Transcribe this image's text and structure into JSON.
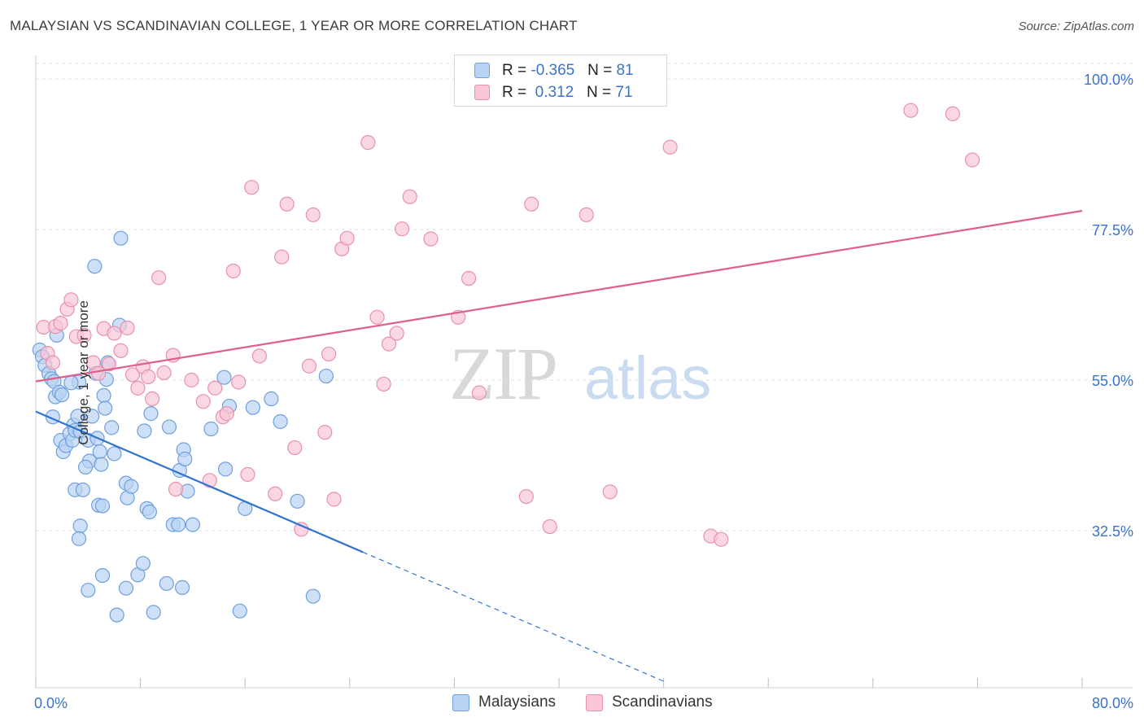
{
  "title": "MALAYSIAN VS SCANDINAVIAN COLLEGE, 1 YEAR OR MORE CORRELATION CHART",
  "source": "Source: ZipAtlas.com",
  "watermark": {
    "zip": "ZIP",
    "atlas": "atlas"
  },
  "colors": {
    "blue_fill": "#b8d3f4",
    "blue_stroke": "#6fa0dc",
    "blue_line": "#2f74d0",
    "pink_fill": "#f8c6d6",
    "pink_stroke": "#e891ad",
    "pink_line": "#e0608a",
    "tick_label": "#3a73c8",
    "grid": "#e2e2e2"
  },
  "legend": {
    "rows": [
      {
        "r_label": "R = ",
        "r_value": "-0.365",
        "n_label": "N = ",
        "n_value": "81"
      },
      {
        "r_label": "R = ",
        "r_value": " 0.312",
        "n_label": "N = ",
        "n_value": "71"
      }
    ]
  },
  "bottom_legend": {
    "series1": "Malaysians",
    "series2": "Scandinavians"
  },
  "chart_data": {
    "type": "scatter",
    "title": "MALAYSIAN VS SCANDINAVIAN COLLEGE, 1 YEAR OR MORE CORRELATION CHART",
    "xlabel": "",
    "ylabel": "College, 1 year or more",
    "xlim": [
      0,
      80
    ],
    "ylim": [
      10,
      105
    ],
    "x_tick_labels": [
      "0.0%",
      "80.0%"
    ],
    "y_ticks": [
      32.5,
      55.0,
      77.5,
      100.0
    ],
    "y_tick_labels": [
      "32.5%",
      "55.0%",
      "77.5%",
      "100.0%"
    ],
    "grid": "horizontal dashed",
    "legend_position": "top-center",
    "series": [
      {
        "name": "Malaysians",
        "color": "#b8d3f4",
        "R": -0.365,
        "N": 81,
        "trend": {
          "x0": 0,
          "y0": 50.3,
          "x1": 25,
          "y1": 29.3,
          "dashed_to_x": 48,
          "dashed_to_y": 10.0
        },
        "points": [
          [
            0.3,
            59.5
          ],
          [
            0.5,
            58.5
          ],
          [
            0.7,
            57.2
          ],
          [
            1.0,
            56.0
          ],
          [
            1.2,
            55.2
          ],
          [
            1.4,
            54.8
          ],
          [
            1.5,
            52.5
          ],
          [
            1.6,
            61.7
          ],
          [
            1.3,
            49.5
          ],
          [
            1.8,
            53.2
          ],
          [
            2.0,
            52.8
          ],
          [
            1.9,
            46.0
          ],
          [
            2.1,
            44.3
          ],
          [
            2.3,
            45.2
          ],
          [
            2.6,
            47.0
          ],
          [
            2.9,
            48.3
          ],
          [
            2.8,
            46.0
          ],
          [
            3.0,
            47.5
          ],
          [
            3.2,
            49.6
          ],
          [
            3.4,
            47.3
          ],
          [
            3.3,
            54.7
          ],
          [
            2.7,
            54.6
          ],
          [
            3.0,
            38.6
          ],
          [
            3.6,
            38.6
          ],
          [
            3.4,
            33.2
          ],
          [
            3.3,
            31.3
          ],
          [
            4.0,
            46.0
          ],
          [
            4.1,
            42.9
          ],
          [
            3.8,
            42.0
          ],
          [
            4.6,
            56.0
          ],
          [
            4.3,
            49.6
          ],
          [
            4.7,
            46.3
          ],
          [
            4.9,
            44.3
          ],
          [
            5.0,
            42.4
          ],
          [
            5.2,
            52.7
          ],
          [
            5.3,
            50.8
          ],
          [
            5.4,
            55.1
          ],
          [
            5.5,
            57.6
          ],
          [
            5.8,
            47.9
          ],
          [
            6.0,
            44.0
          ],
          [
            4.5,
            72.0
          ],
          [
            4.8,
            36.3
          ],
          [
            5.1,
            36.2
          ],
          [
            6.4,
            63.2
          ],
          [
            6.5,
            76.2
          ],
          [
            6.9,
            39.6
          ],
          [
            7.0,
            37.4
          ],
          [
            7.3,
            39.1
          ],
          [
            8.3,
            47.4
          ],
          [
            8.5,
            35.8
          ],
          [
            8.7,
            35.3
          ],
          [
            8.8,
            50.0
          ],
          [
            10.2,
            48.0
          ],
          [
            10.5,
            33.4
          ],
          [
            10.9,
            33.4
          ],
          [
            11.0,
            41.5
          ],
          [
            11.3,
            44.6
          ],
          [
            11.4,
            43.2
          ],
          [
            11.6,
            38.4
          ],
          [
            12.0,
            33.4
          ],
          [
            7.8,
            25.9
          ],
          [
            6.9,
            23.9
          ],
          [
            5.1,
            25.8
          ],
          [
            4.0,
            23.6
          ],
          [
            11.2,
            24.0
          ],
          [
            10.0,
            24.6
          ],
          [
            8.2,
            27.6
          ],
          [
            14.5,
            41.7
          ],
          [
            16.0,
            35.8
          ],
          [
            14.4,
            55.4
          ],
          [
            14.8,
            51.1
          ],
          [
            16.6,
            50.9
          ],
          [
            18.0,
            52.2
          ],
          [
            18.7,
            48.8
          ],
          [
            20.0,
            36.9
          ],
          [
            21.2,
            22.7
          ],
          [
            22.2,
            55.6
          ],
          [
            9.0,
            20.3
          ],
          [
            15.6,
            20.5
          ],
          [
            6.2,
            19.9
          ],
          [
            13.4,
            47.7
          ]
        ]
      },
      {
        "name": "Scandinavians",
        "color": "#f8c6d6",
        "R": 0.312,
        "N": 71,
        "trend": {
          "x0": 0,
          "y0": 54.8,
          "x1": 80,
          "y1": 80.3
        },
        "points": [
          [
            0.6,
            62.9
          ],
          [
            0.9,
            59.0
          ],
          [
            1.3,
            57.6
          ],
          [
            1.5,
            63.0
          ],
          [
            1.9,
            63.5
          ],
          [
            2.4,
            65.6
          ],
          [
            2.7,
            67.0
          ],
          [
            3.1,
            61.5
          ],
          [
            3.7,
            61.7
          ],
          [
            4.4,
            57.6
          ],
          [
            4.8,
            56.0
          ],
          [
            5.2,
            62.7
          ],
          [
            5.6,
            57.4
          ],
          [
            6.0,
            62.0
          ],
          [
            6.5,
            59.4
          ],
          [
            7.0,
            62.8
          ],
          [
            7.4,
            55.8
          ],
          [
            7.8,
            53.8
          ],
          [
            8.2,
            57.0
          ],
          [
            8.6,
            55.5
          ],
          [
            8.9,
            52.2
          ],
          [
            9.4,
            70.3
          ],
          [
            9.8,
            56.1
          ],
          [
            10.5,
            58.7
          ],
          [
            10.7,
            38.7
          ],
          [
            11.9,
            55.0
          ],
          [
            12.8,
            51.8
          ],
          [
            13.3,
            40.0
          ],
          [
            13.7,
            53.8
          ],
          [
            14.3,
            49.5
          ],
          [
            14.6,
            50.0
          ],
          [
            15.1,
            71.3
          ],
          [
            15.5,
            54.7
          ],
          [
            16.2,
            40.9
          ],
          [
            16.5,
            83.8
          ],
          [
            17.1,
            58.6
          ],
          [
            18.3,
            38.0
          ],
          [
            18.8,
            73.4
          ],
          [
            19.2,
            81.3
          ],
          [
            19.8,
            44.9
          ],
          [
            20.3,
            32.7
          ],
          [
            20.9,
            57.1
          ],
          [
            21.2,
            79.7
          ],
          [
            22.1,
            47.2
          ],
          [
            22.4,
            58.9
          ],
          [
            22.8,
            37.2
          ],
          [
            23.4,
            74.6
          ],
          [
            23.8,
            76.2
          ],
          [
            25.4,
            90.5
          ],
          [
            26.1,
            64.4
          ],
          [
            26.6,
            54.4
          ],
          [
            27.0,
            60.4
          ],
          [
            27.6,
            62.0
          ],
          [
            28.0,
            77.6
          ],
          [
            28.6,
            82.4
          ],
          [
            30.2,
            76.1
          ],
          [
            32.3,
            64.4
          ],
          [
            33.1,
            70.2
          ],
          [
            33.9,
            53.1
          ],
          [
            37.5,
            37.6
          ],
          [
            37.9,
            81.3
          ],
          [
            39.3,
            33.1
          ],
          [
            42.1,
            79.7
          ],
          [
            43.9,
            38.3
          ],
          [
            47.1,
            100.1
          ],
          [
            48.5,
            89.8
          ],
          [
            51.6,
            31.7
          ],
          [
            52.4,
            31.2
          ],
          [
            66.9,
            95.3
          ],
          [
            70.1,
            94.8
          ],
          [
            71.6,
            87.9
          ]
        ]
      }
    ]
  }
}
